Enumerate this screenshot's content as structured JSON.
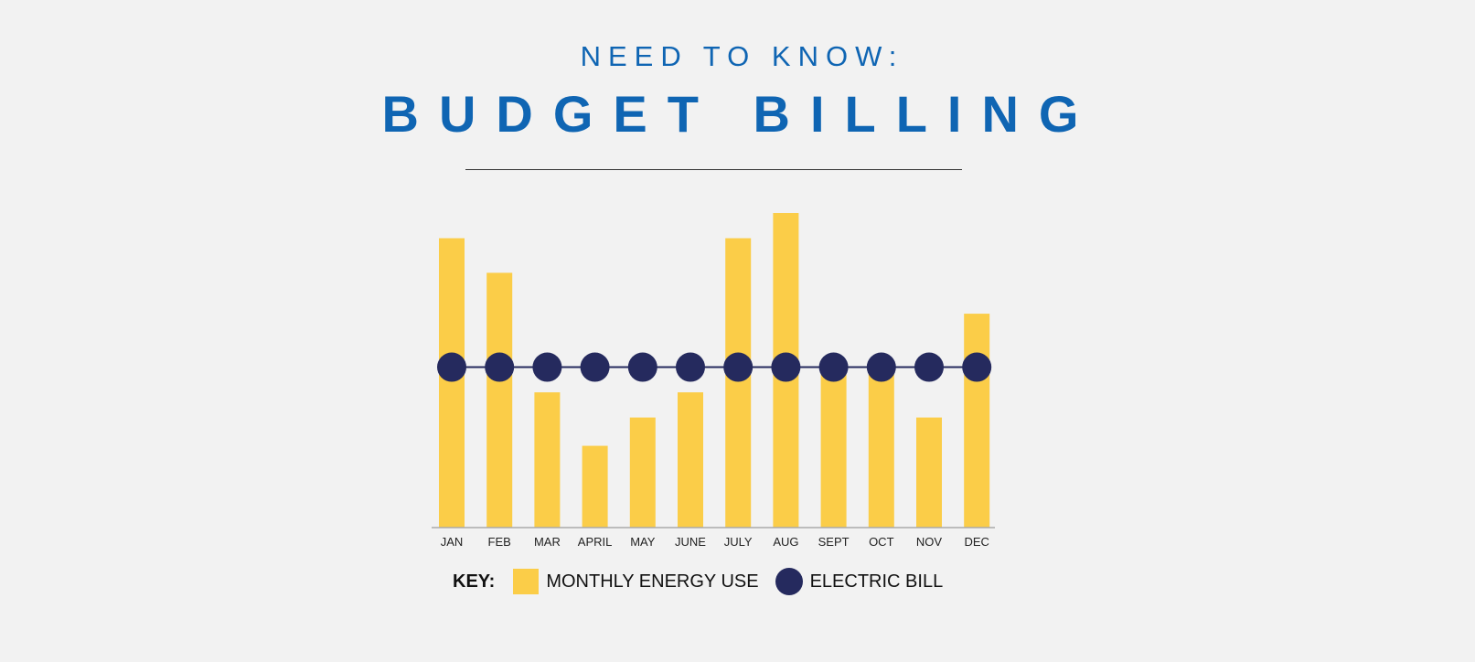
{
  "header": {
    "subtitle": "NEED TO KNOW:",
    "title": "BUDGET BILLING"
  },
  "chart_data": {
    "type": "bar",
    "categories": [
      "JAN",
      "FEB",
      "MAR",
      "APRIL",
      "MAY",
      "JUNE",
      "JULY",
      "AUG",
      "SEPT",
      "OCT",
      "NOV",
      "DEC"
    ],
    "series": [
      {
        "name": "MONTHLY ENERGY USE",
        "kind": "bar",
        "color": "#fbcd48",
        "values": [
          92,
          81,
          43,
          26,
          35,
          43,
          92,
          100,
          50,
          50,
          35,
          68
        ]
      },
      {
        "name": "ELECTRIC BILL",
        "kind": "line-markers",
        "color": "#252a5e",
        "values": [
          51,
          51,
          51,
          51,
          51,
          51,
          51,
          51,
          51,
          51,
          51,
          51
        ]
      }
    ],
    "ylim": [
      0,
      100
    ],
    "yaxis_visible": false,
    "grid": false,
    "legend": {
      "position": "bottom",
      "title": "KEY:"
    }
  }
}
